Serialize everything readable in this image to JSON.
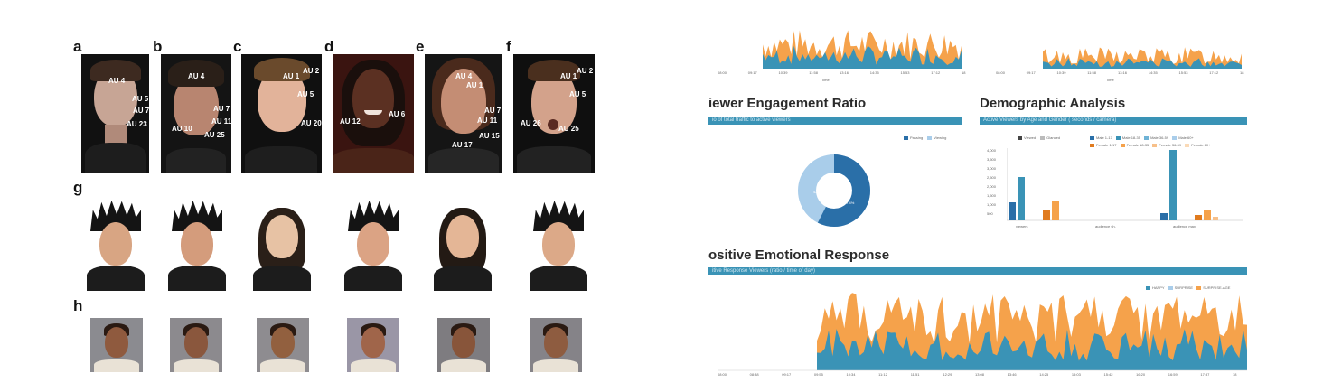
{
  "left_figure": {
    "panel_labels": [
      "a",
      "b",
      "c",
      "d",
      "e",
      "f",
      "g",
      "h"
    ],
    "top_row": [
      {
        "label": "a",
        "skin": "#c7a595",
        "hair": "#3d2a20",
        "bg": "#0d0d0d",
        "aus": [
          "AU 4",
          "AU 5",
          "AU 7",
          "AU 23"
        ]
      },
      {
        "label": "b",
        "skin": "#b88570",
        "hair": "#2a1f18",
        "bg": "#141414",
        "aus": [
          "AU 4",
          "AU 7",
          "AU 10",
          "AU 11",
          "AU 25"
        ]
      },
      {
        "label": "c",
        "skin": "#e2b39a",
        "hair": "#6a4a2c",
        "bg": "#101010",
        "aus": [
          "AU 1",
          "AU 2",
          "AU 5",
          "AU 20"
        ]
      },
      {
        "label": "d",
        "skin": "#5b3022",
        "hair": "#1a0f0c",
        "bg": "#3a1410",
        "aus": [
          "AU 12",
          "AU 6"
        ]
      },
      {
        "label": "e",
        "skin": "#c48d74",
        "hair": "#4a2a1c",
        "bg": "#151515",
        "aus": [
          "AU 4",
          "AU 1",
          "AU 7",
          "AU 11",
          "AU 15",
          "AU 17"
        ]
      },
      {
        "label": "f",
        "skin": "#d3a28b",
        "hair": "#4a2f1e",
        "bg": "#0f0f0f",
        "aus": [
          "AU 1",
          "AU 2",
          "AU 5",
          "AU 26",
          "AU 25"
        ]
      }
    ],
    "row_g": [
      {
        "skin": "#d8a583",
        "hair": "#141414",
        "spiky": true
      },
      {
        "skin": "#d49c7c",
        "hair": "#141414",
        "spiky": true
      },
      {
        "skin": "#e7c2a4",
        "hair": "#2a1f18",
        "spiky": false
      },
      {
        "skin": "#dba384",
        "hair": "#141414",
        "spiky": true
      },
      {
        "skin": "#e4b696",
        "hair": "#231a14",
        "spiky": false
      },
      {
        "skin": "#dca988",
        "hair": "#141414",
        "spiky": true
      }
    ],
    "row_h": [
      {
        "bg": "#8b8b90",
        "skin": "#8f5a3e"
      },
      {
        "bg": "#8c8a8e",
        "skin": "#8a573d"
      },
      {
        "bg": "#8e8c90",
        "skin": "#92603f"
      },
      {
        "bg": "#9a96a6",
        "skin": "#a0654a"
      },
      {
        "bg": "#7e7c80",
        "skin": "#88553a"
      },
      {
        "bg": "#858388",
        "skin": "#8e5c40"
      }
    ]
  },
  "dashboard": {
    "colors": {
      "blue": "#3a93b6",
      "orange": "#f5a24b",
      "dark_blue": "#2a6fa8",
      "light_blue": "#a9cdea",
      "bar_bg": "#3a93b6"
    },
    "engagement": {
      "title": "iewer Engagement Ratio",
      "subtitle": "io of total traffic to active viewers",
      "legend": [
        "Passing",
        "Viewing"
      ],
      "donut_labels": [
        "42.6",
        "57.4%"
      ]
    },
    "demographic": {
      "title": "Demographic Analysis",
      "subtitle": "Active Viewers by Age and Gender ( seconds / camera)",
      "legend_row1": [
        "Viewed",
        "Glanced"
      ],
      "legend_row2": [
        "Male 1-17",
        "Male 18-35",
        "Male 36-59",
        "Male 60+"
      ],
      "legend_row3": [
        "Female 1-17",
        "Female 18-35",
        "Female 36-59",
        "Female 60+"
      ],
      "y_ticks": [
        "4,000",
        "3,500",
        "3,000",
        "2,500",
        "2,000",
        "1,500",
        "1,000",
        "500"
      ],
      "x_ticks": [
        "viewers",
        "audience sh.",
        "audience max"
      ]
    },
    "positive": {
      "title": "ositive Emotional Response",
      "subtitle": "itive Response Viewers (ratio / time of day)",
      "legend": [
        "HAPPY",
        "SURPRISE",
        "SURPRISE-AGE"
      ]
    },
    "top_chart_ticks": [
      "08:00",
      "09:17",
      "10:39",
      "11:58",
      "13:16",
      "14:35",
      "15:53",
      "17:12",
      "18"
    ],
    "top_chart_xlabel": "Time",
    "bottom_ticks": [
      "08:00",
      "08:38",
      "09:17",
      "09:55",
      "10:34",
      "11:12",
      "11:51",
      "12:29",
      "13:08",
      "13:46",
      "14:25",
      "15:03",
      "15:42",
      "16:20",
      "16:59",
      "17:37",
      "18"
    ]
  }
}
